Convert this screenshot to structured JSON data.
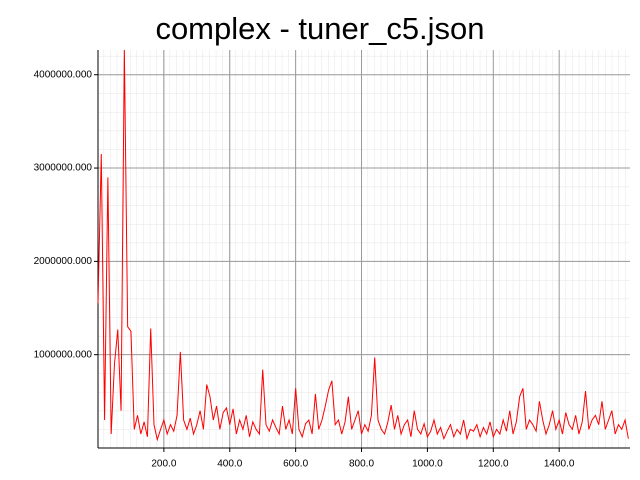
{
  "chart_data": {
    "type": "line",
    "title": "complex - tuner_c5.json",
    "color": "#ff0000",
    "grid": true,
    "xlim": [
      0,
      1615
    ],
    "ylim": [
      0,
      4265000
    ],
    "xticks": [
      {
        "value": 200,
        "label": "200.0"
      },
      {
        "value": 400,
        "label": "400.0"
      },
      {
        "value": 600,
        "label": "600.0"
      },
      {
        "value": 800,
        "label": "800.0"
      },
      {
        "value": 1000,
        "label": "1000.0"
      },
      {
        "value": 1200,
        "label": "1200.0"
      },
      {
        "value": 1400,
        "label": "1400.0"
      }
    ],
    "yticks": [
      {
        "value": 1000000,
        "label": "1000000.000"
      },
      {
        "value": 2000000,
        "label": "2000000.000"
      },
      {
        "value": 3000000,
        "label": "3000000.000"
      },
      {
        "value": 4000000,
        "label": "4000000.000"
      }
    ],
    "x": [
      0,
      10,
      20,
      30,
      40,
      50,
      60,
      70,
      80,
      90,
      100,
      110,
      120,
      130,
      140,
      150,
      160,
      170,
      180,
      190,
      200,
      210,
      220,
      230,
      240,
      250,
      260,
      270,
      280,
      290,
      300,
      310,
      320,
      330,
      340,
      350,
      360,
      370,
      380,
      390,
      400,
      410,
      420,
      430,
      440,
      450,
      460,
      470,
      480,
      490,
      500,
      510,
      520,
      530,
      540,
      550,
      560,
      570,
      580,
      590,
      600,
      610,
      620,
      630,
      640,
      650,
      660,
      670,
      680,
      690,
      700,
      710,
      720,
      730,
      740,
      750,
      760,
      770,
      780,
      790,
      800,
      810,
      820,
      830,
      840,
      850,
      860,
      870,
      880,
      890,
      900,
      910,
      920,
      930,
      940,
      950,
      960,
      970,
      980,
      990,
      1000,
      1010,
      1020,
      1030,
      1040,
      1050,
      1060,
      1070,
      1080,
      1090,
      1100,
      1110,
      1120,
      1130,
      1140,
      1150,
      1160,
      1170,
      1180,
      1190,
      1200,
      1210,
      1220,
      1230,
      1240,
      1250,
      1260,
      1270,
      1280,
      1290,
      1300,
      1310,
      1320,
      1330,
      1340,
      1350,
      1360,
      1370,
      1380,
      1390,
      1400,
      1410,
      1420,
      1430,
      1440,
      1450,
      1460,
      1470,
      1480,
      1490,
      1500,
      1510,
      1520,
      1530,
      1540,
      1550,
      1560,
      1570,
      1580,
      1590,
      1600,
      1610
    ],
    "values": [
      1550000,
      3150000,
      300000,
      2900000,
      150000,
      900000,
      1270000,
      400000,
      4265000,
      1300000,
      1250000,
      200000,
      350000,
      150000,
      280000,
      120000,
      1280000,
      250000,
      90000,
      200000,
      300000,
      150000,
      250000,
      180000,
      350000,
      1030000,
      300000,
      200000,
      320000,
      150000,
      250000,
      400000,
      200000,
      680000,
      550000,
      300000,
      450000,
      200000,
      380000,
      430000,
      250000,
      420000,
      150000,
      300000,
      200000,
      350000,
      120000,
      280000,
      200000,
      150000,
      840000,
      250000,
      180000,
      300000,
      220000,
      150000,
      450000,
      200000,
      300000,
      150000,
      640000,
      200000,
      120000,
      260000,
      300000,
      150000,
      580000,
      200000,
      300000,
      450000,
      620000,
      720000,
      250000,
      300000,
      150000,
      280000,
      550000,
      200000,
      300000,
      400000,
      150000,
      250000,
      180000,
      350000,
      970000,
      300000,
      200000,
      150000,
      280000,
      460000,
      200000,
      350000,
      150000,
      250000,
      300000,
      120000,
      400000,
      200000,
      150000,
      260000,
      120000,
      180000,
      300000,
      150000,
      220000,
      100000,
      180000,
      250000,
      120000,
      200000,
      150000,
      300000,
      100000,
      200000,
      180000,
      250000,
      120000,
      220000,
      150000,
      280000,
      120000,
      200000,
      150000,
      300000,
      180000,
      400000,
      150000,
      280000,
      550000,
      640000,
      200000,
      300000,
      250000,
      180000,
      500000,
      300000,
      150000,
      250000,
      400000,
      200000,
      300000,
      150000,
      380000,
      250000,
      200000,
      350000,
      150000,
      280000,
      610000,
      200000,
      300000,
      350000,
      250000,
      500000,
      200000,
      300000,
      400000,
      150000,
      250000,
      200000,
      300000,
      100000
    ]
  }
}
